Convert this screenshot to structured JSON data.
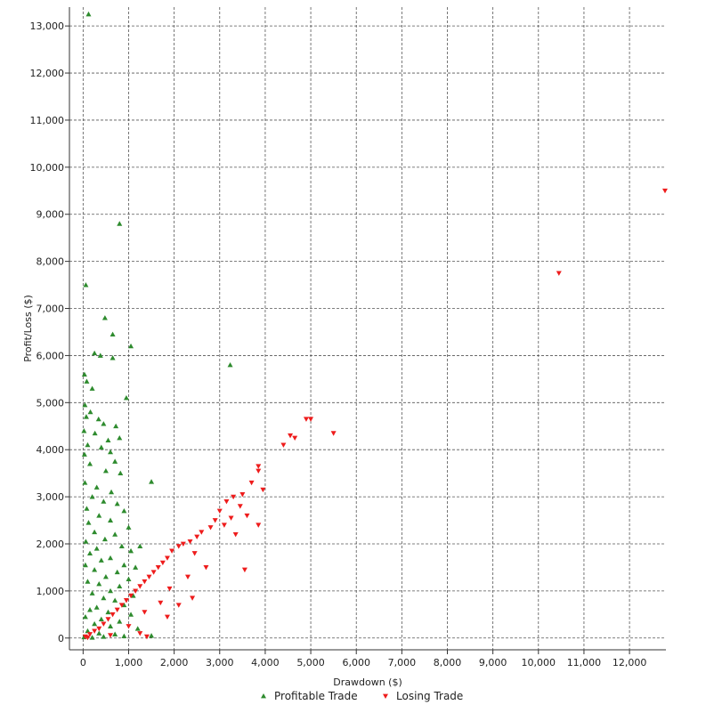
{
  "chart_data": {
    "type": "scatter",
    "xlabel": "Drawdown ($)",
    "ylabel": "Profit/Loss ($)",
    "xlim": [
      -300,
      12800
    ],
    "ylim": [
      -250,
      13400
    ],
    "x_ticks": [
      0,
      1000,
      2000,
      3000,
      4000,
      5000,
      6000,
      7000,
      8000,
      9000,
      10000,
      11000,
      12000
    ],
    "x_tick_labels": [
      "0",
      "1,000",
      "2,000",
      "3,000",
      "4,000",
      "5,000",
      "6,000",
      "7,000",
      "8,000",
      "9,000",
      "10,000",
      "11,000",
      "12,000"
    ],
    "y_ticks": [
      0,
      1000,
      2000,
      3000,
      4000,
      5000,
      6000,
      7000,
      8000,
      9000,
      10000,
      11000,
      12000,
      13000
    ],
    "y_tick_labels": [
      "0",
      "1,000",
      "2,000",
      "3,000",
      "4,000",
      "5,000",
      "6,000",
      "7,000",
      "8,000",
      "9,000",
      "10,000",
      "11,000",
      "12,000",
      "13,000"
    ],
    "grid": true,
    "legend_position": "bottom",
    "series": [
      {
        "name": "Profitable Trade",
        "color": "#2e8b2e",
        "marker": "triangle-up",
        "points": [
          [
            120,
            13250
          ],
          [
            800,
            8800
          ],
          [
            60,
            7500
          ],
          [
            480,
            6800
          ],
          [
            650,
            6450
          ],
          [
            1050,
            6200
          ],
          [
            250,
            6050
          ],
          [
            380,
            6000
          ],
          [
            650,
            5950
          ],
          [
            3230,
            5800
          ],
          [
            30,
            5600
          ],
          [
            80,
            5450
          ],
          [
            200,
            5300
          ],
          [
            950,
            5100
          ],
          [
            40,
            4950
          ],
          [
            160,
            4800
          ],
          [
            70,
            4700
          ],
          [
            340,
            4650
          ],
          [
            450,
            4550
          ],
          [
            720,
            4500
          ],
          [
            20,
            4400
          ],
          [
            260,
            4350
          ],
          [
            550,
            4200
          ],
          [
            800,
            4250
          ],
          [
            100,
            4100
          ],
          [
            400,
            4050
          ],
          [
            600,
            3950
          ],
          [
            30,
            3900
          ],
          [
            700,
            3750
          ],
          [
            150,
            3700
          ],
          [
            500,
            3550
          ],
          [
            820,
            3500
          ],
          [
            1500,
            3320
          ],
          [
            40,
            3300
          ],
          [
            300,
            3200
          ],
          [
            620,
            3100
          ],
          [
            200,
            3000
          ],
          [
            450,
            2900
          ],
          [
            750,
            2850
          ],
          [
            80,
            2750
          ],
          [
            900,
            2700
          ],
          [
            350,
            2600
          ],
          [
            600,
            2500
          ],
          [
            120,
            2450
          ],
          [
            1000,
            2350
          ],
          [
            250,
            2250
          ],
          [
            700,
            2200
          ],
          [
            480,
            2100
          ],
          [
            60,
            2050
          ],
          [
            850,
            1950
          ],
          [
            1250,
            1950
          ],
          [
            300,
            1900
          ],
          [
            1050,
            1850
          ],
          [
            150,
            1800
          ],
          [
            600,
            1700
          ],
          [
            400,
            1650
          ],
          [
            900,
            1550
          ],
          [
            50,
            1550
          ],
          [
            1150,
            1500
          ],
          [
            250,
            1450
          ],
          [
            750,
            1400
          ],
          [
            500,
            1300
          ],
          [
            1000,
            1250
          ],
          [
            100,
            1200
          ],
          [
            350,
            1150
          ],
          [
            800,
            1100
          ],
          [
            600,
            1000
          ],
          [
            200,
            950
          ],
          [
            1100,
            900
          ],
          [
            450,
            850
          ],
          [
            700,
            800
          ],
          [
            900,
            700
          ],
          [
            300,
            650
          ],
          [
            150,
            600
          ],
          [
            550,
            550
          ],
          [
            1050,
            500
          ],
          [
            50,
            450
          ],
          [
            400,
            400
          ],
          [
            800,
            350
          ],
          [
            250,
            300
          ],
          [
            600,
            250
          ],
          [
            1200,
            200
          ],
          [
            100,
            150
          ],
          [
            350,
            100
          ],
          [
            700,
            80
          ],
          [
            1500,
            50
          ],
          [
            900,
            40
          ],
          [
            20,
            20
          ],
          [
            450,
            30
          ],
          [
            200,
            10
          ]
        ]
      },
      {
        "name": "Losing Trade",
        "color": "#ee1c1c",
        "marker": "triangle-down",
        "points": [
          [
            12780,
            9500
          ],
          [
            10450,
            7750
          ],
          [
            4900,
            4650
          ],
          [
            5000,
            4650
          ],
          [
            5500,
            4350
          ],
          [
            4550,
            4300
          ],
          [
            4650,
            4250
          ],
          [
            4400,
            4100
          ],
          [
            3850,
            3650
          ],
          [
            3850,
            3550
          ],
          [
            3700,
            3300
          ],
          [
            3950,
            3150
          ],
          [
            3500,
            3050
          ],
          [
            3300,
            3000
          ],
          [
            3150,
            2900
          ],
          [
            3450,
            2800
          ],
          [
            3000,
            2700
          ],
          [
            3600,
            2600
          ],
          [
            3250,
            2550
          ],
          [
            2900,
            2500
          ],
          [
            3850,
            2400
          ],
          [
            3100,
            2400
          ],
          [
            2800,
            2350
          ],
          [
            2600,
            2250
          ],
          [
            3350,
            2200
          ],
          [
            2500,
            2150
          ],
          [
            2350,
            2050
          ],
          [
            2200,
            2000
          ],
          [
            2100,
            1950
          ],
          [
            1950,
            1850
          ],
          [
            2450,
            1800
          ],
          [
            1850,
            1700
          ],
          [
            1750,
            1600
          ],
          [
            2700,
            1500
          ],
          [
            3550,
            1450
          ],
          [
            1650,
            1500
          ],
          [
            1550,
            1400
          ],
          [
            2300,
            1300
          ],
          [
            1450,
            1300
          ],
          [
            1350,
            1200
          ],
          [
            1250,
            1100
          ],
          [
            1900,
            1050
          ],
          [
            1150,
            1000
          ],
          [
            1050,
            900
          ],
          [
            2400,
            850
          ],
          [
            950,
            800
          ],
          [
            1700,
            750
          ],
          [
            850,
            700
          ],
          [
            2100,
            700
          ],
          [
            750,
            600
          ],
          [
            1350,
            550
          ],
          [
            650,
            500
          ],
          [
            1850,
            450
          ],
          [
            550,
            400
          ],
          [
            450,
            300
          ],
          [
            1000,
            250
          ],
          [
            350,
            200
          ],
          [
            250,
            150
          ],
          [
            1250,
            100
          ],
          [
            150,
            80
          ],
          [
            600,
            60
          ],
          [
            1400,
            30
          ],
          [
            50,
            30
          ],
          [
            100,
            10
          ]
        ]
      }
    ]
  }
}
